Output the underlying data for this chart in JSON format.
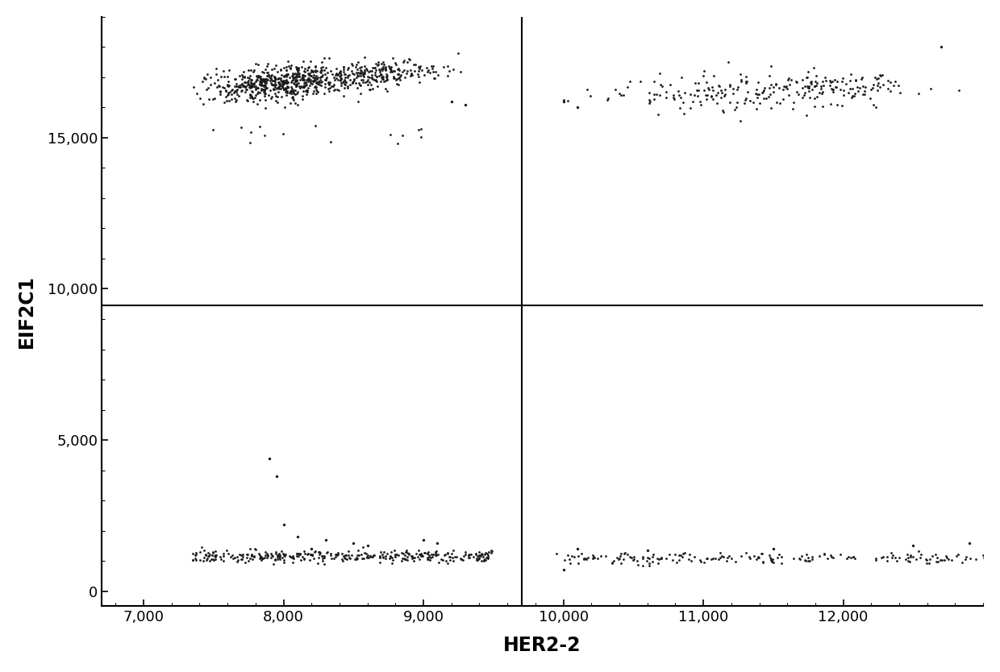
{
  "title": "",
  "xlabel": "HER2-2",
  "ylabel": "EIF2C1",
  "xlim": [
    6700,
    13000
  ],
  "ylim": [
    -500,
    19000
  ],
  "xticks": [
    7000,
    8000,
    9000,
    10000,
    11000,
    12000
  ],
  "yticks": [
    0,
    5000,
    10000,
    15000
  ],
  "x_threshold": 9700,
  "y_threshold": 9450,
  "dot_color": "#1a1a1a",
  "dot_size": 4,
  "background_color": "#ffffff",
  "line_color": "#000000",
  "line_width": 1.5,
  "tick_fontsize": 13,
  "label_fontsize": 17
}
